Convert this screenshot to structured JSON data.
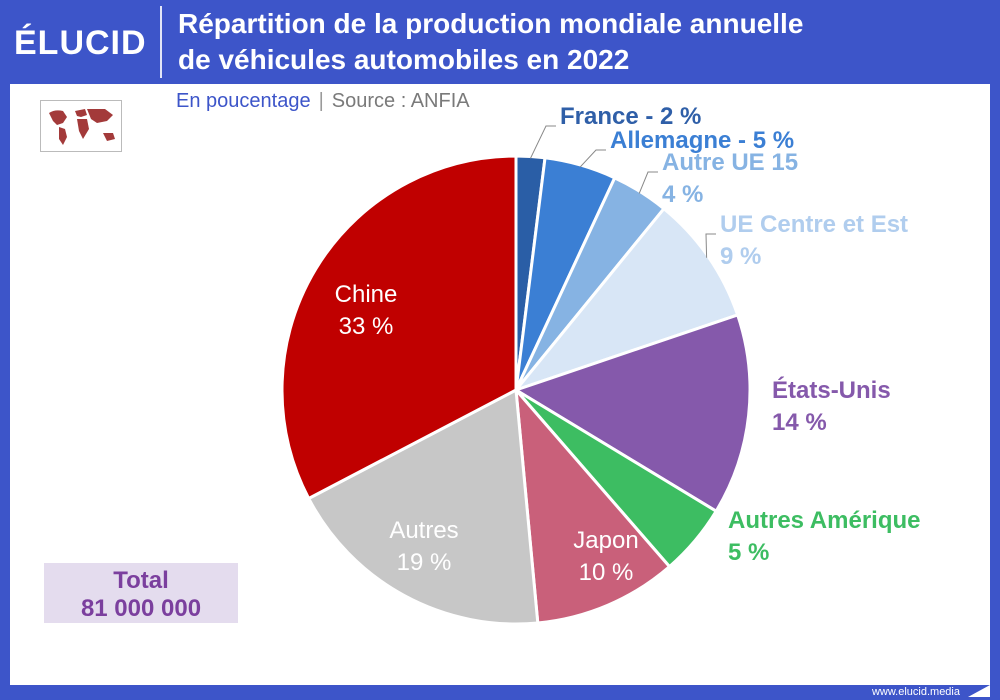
{
  "header": {
    "logo_text": "ÉLUCID",
    "title_line1": "Répartition de la production mondiale annuelle",
    "title_line2": "de véhicules automobiles en 2022"
  },
  "subtitle": {
    "unit": "En poucentage",
    "separator": "|",
    "source": "Source : ANFIA"
  },
  "total": {
    "label": "Total",
    "value": "81 000 000"
  },
  "footer": {
    "site": "www.elucid.media"
  },
  "map_icon": "world-map-icon",
  "chart_data": {
    "type": "pie",
    "title": "Répartition de la production mondiale annuelle de véhicules automobiles en 2022",
    "unit": "%",
    "slices": [
      {
        "label": "France",
        "value": 2,
        "text": "France - 2 %",
        "color": "#2a5ea6",
        "label_color": "#2f5fa8"
      },
      {
        "label": "Allemagne",
        "value": 5,
        "text": "Allemagne - 5 %",
        "color": "#3b7fd4",
        "label_color": "#3b7fd4"
      },
      {
        "label": "Autre UE 15",
        "value": 4,
        "text": "Autre UE 15",
        "pct": "4 %",
        "color": "#86b3e3",
        "label_color": "#86b3e3"
      },
      {
        "label": "UE Centre et Est",
        "value": 9,
        "text": "UE Centre et Est",
        "pct": "9 %",
        "color": "#d8e6f6",
        "label_color": "#b0cdee"
      },
      {
        "label": "États-Unis",
        "value": 14,
        "text": "États-Unis",
        "pct": "14 %",
        "color": "#8559ab",
        "label_color": "#8559ab"
      },
      {
        "label": "Autres Amérique",
        "value": 5,
        "text": "Autres Amérique",
        "pct": "5 %",
        "color": "#3dbd62",
        "label_color": "#3dbd62"
      },
      {
        "label": "Japon",
        "value": 10,
        "text": "Japon",
        "pct": "10 %",
        "color": "#c9607a",
        "label_color": "#ffffff"
      },
      {
        "label": "Autres",
        "value": 19,
        "text": "Autres",
        "pct": "19 %",
        "color": "#c7c7c7",
        "label_color": "#ffffff"
      },
      {
        "label": "Chine",
        "value": 33,
        "text": "Chine",
        "pct": "33 %",
        "color": "#c00000",
        "label_color": "#ffffff"
      }
    ]
  }
}
